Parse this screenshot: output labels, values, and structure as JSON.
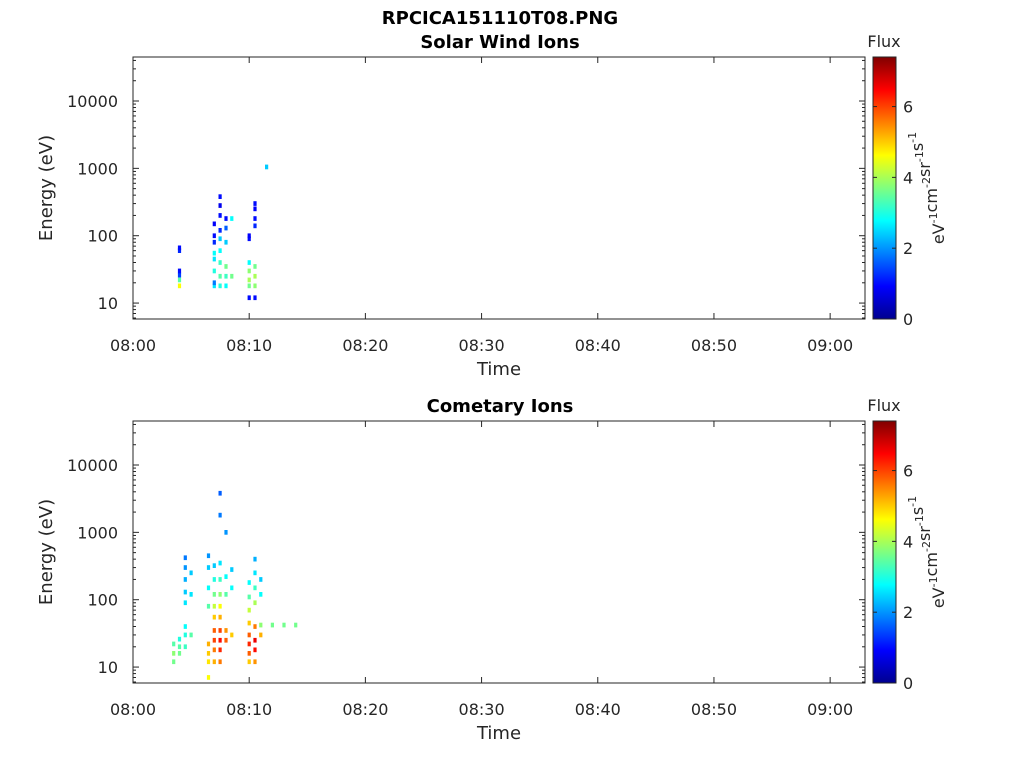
{
  "figure": {
    "filename": "RPCICA151110T08.PNG",
    "colormap": "jet"
  },
  "chart_data": [
    {
      "type": "heatmap",
      "title": "Solar Wind Ions",
      "xlabel": "Time",
      "ylabel": "Energy (eV)",
      "xlim": [
        "08:00",
        "09:03"
      ],
      "ylim": [
        5.8,
        45000
      ],
      "yscale": "log",
      "xticks": [
        "08:00",
        "08:10",
        "08:20",
        "08:30",
        "08:40",
        "08:50",
        "09:00"
      ],
      "yticks": [
        "10",
        "100",
        "1000",
        "10000"
      ],
      "colorbar": {
        "label_top": "Flux",
        "unit_parts": [
          [
            "eV",
            "-1"
          ],
          [
            "cm",
            "-2"
          ],
          [
            "sr",
            "-1"
          ],
          [
            "s",
            "-1"
          ]
        ],
        "range": [
          0,
          7.4
        ],
        "ticks": [
          "0",
          "2",
          "4",
          "6"
        ]
      },
      "cells": [
        [
          "08:04",
          18,
          4.6
        ],
        [
          "08:04",
          22,
          3.4
        ],
        [
          "08:04",
          26,
          1.4
        ],
        [
          "08:04",
          30,
          1.0
        ],
        [
          "08:04",
          60,
          1.2
        ],
        [
          "08:04",
          66,
          1.0
        ],
        [
          "08:07",
          18,
          2.6
        ],
        [
          "08:07",
          20,
          1.8
        ],
        [
          "08:07",
          30,
          3.0
        ],
        [
          "08:07",
          45,
          2.6
        ],
        [
          "08:07",
          55,
          2.8
        ],
        [
          "08:07",
          80,
          1.2
        ],
        [
          "08:07",
          100,
          1.0
        ],
        [
          "08:07",
          150,
          0.9
        ],
        [
          "08:07.5",
          18,
          3.0
        ],
        [
          "08:07.5",
          25,
          3.4
        ],
        [
          "08:07.5",
          40,
          3.2
        ],
        [
          "08:07.5",
          60,
          2.8
        ],
        [
          "08:07.5",
          90,
          2.4
        ],
        [
          "08:07.5",
          120,
          1.2
        ],
        [
          "08:07.5",
          200,
          1.0
        ],
        [
          "08:07.5",
          280,
          0.8
        ],
        [
          "08:07.5",
          380,
          1.0
        ],
        [
          "08:08",
          18,
          2.8
        ],
        [
          "08:08",
          25,
          3.2
        ],
        [
          "08:08",
          35,
          3.6
        ],
        [
          "08:08",
          80,
          2.4
        ],
        [
          "08:08",
          130,
          1.6
        ],
        [
          "08:08",
          180,
          1.0
        ],
        [
          "08:08.5",
          25,
          3.6
        ],
        [
          "08:08.5",
          180,
          2.8
        ],
        [
          "08:10",
          12,
          1.0
        ],
        [
          "08:10",
          18,
          3.6
        ],
        [
          "08:10",
          22,
          4.0
        ],
        [
          "08:10",
          30,
          3.8
        ],
        [
          "08:10",
          40,
          2.8
        ],
        [
          "08:10",
          90,
          1.0
        ],
        [
          "08:10",
          100,
          0.9
        ],
        [
          "08:10.5",
          12,
          1.0
        ],
        [
          "08:10.5",
          18,
          3.8
        ],
        [
          "08:10.5",
          25,
          4.0
        ],
        [
          "08:10.5",
          35,
          3.6
        ],
        [
          "08:10.5",
          140,
          1.2
        ],
        [
          "08:10.5",
          180,
          1.0
        ],
        [
          "08:10.5",
          250,
          0.9
        ],
        [
          "08:10.5",
          300,
          1.0
        ],
        [
          "08:11.5",
          1050,
          2.4
        ]
      ]
    },
    {
      "type": "heatmap",
      "title": "Cometary Ions",
      "xlabel": "Time",
      "ylabel": "Energy (eV)",
      "xlim": [
        "08:00",
        "09:03"
      ],
      "ylim": [
        5.8,
        45000
      ],
      "yscale": "log",
      "xticks": [
        "08:00",
        "08:10",
        "08:20",
        "08:30",
        "08:40",
        "08:50",
        "09:00"
      ],
      "yticks": [
        "10",
        "100",
        "1000",
        "10000"
      ],
      "colorbar": {
        "label_top": "Flux",
        "unit_parts": [
          [
            "eV",
            "-1"
          ],
          [
            "cm",
            "-2"
          ],
          [
            "sr",
            "-1"
          ],
          [
            "s",
            "-1"
          ]
        ],
        "range": [
          0,
          7.4
        ],
        "ticks": [
          "0",
          "2",
          "4",
          "6"
        ]
      },
      "cells": [
        [
          "08:03.5",
          12,
          3.6
        ],
        [
          "08:03.5",
          16,
          3.8
        ],
        [
          "08:03.5",
          22,
          3.4
        ],
        [
          "08:04",
          16,
          3.6
        ],
        [
          "08:04",
          20,
          3.4
        ],
        [
          "08:04",
          26,
          3.0
        ],
        [
          "08:04.5",
          20,
          3.2
        ],
        [
          "08:04.5",
          30,
          3.0
        ],
        [
          "08:04.5",
          40,
          2.8
        ],
        [
          "08:04.5",
          90,
          2.6
        ],
        [
          "08:04.5",
          130,
          2.4
        ],
        [
          "08:04.5",
          200,
          2.2
        ],
        [
          "08:04.5",
          300,
          2.0
        ],
        [
          "08:04.5",
          420,
          1.8
        ],
        [
          "08:05",
          30,
          3.4
        ],
        [
          "08:05",
          120,
          2.6
        ],
        [
          "08:05",
          250,
          2.4
        ],
        [
          "08:06.5",
          7,
          4.6
        ],
        [
          "08:06.5",
          12,
          4.8
        ],
        [
          "08:06.5",
          16,
          5.0
        ],
        [
          "08:06.5",
          22,
          5.2
        ],
        [
          "08:06.5",
          80,
          3.4
        ],
        [
          "08:06.5",
          150,
          2.8
        ],
        [
          "08:06.5",
          300,
          2.4
        ],
        [
          "08:06.5",
          450,
          2.0
        ],
        [
          "08:07",
          12,
          5.2
        ],
        [
          "08:07",
          18,
          5.6
        ],
        [
          "08:07",
          25,
          6.0
        ],
        [
          "08:07",
          35,
          5.8
        ],
        [
          "08:07",
          55,
          5.0
        ],
        [
          "08:07",
          80,
          4.2
        ],
        [
          "08:07",
          120,
          3.6
        ],
        [
          "08:07",
          200,
          3.0
        ],
        [
          "08:07",
          320,
          2.4
        ],
        [
          "08:07.5",
          12,
          5.6
        ],
        [
          "08:07.5",
          18,
          6.2
        ],
        [
          "08:07.5",
          25,
          6.4
        ],
        [
          "08:07.5",
          35,
          6.0
        ],
        [
          "08:07.5",
          55,
          5.2
        ],
        [
          "08:07.5",
          80,
          4.6
        ],
        [
          "08:07.5",
          120,
          3.8
        ],
        [
          "08:07.5",
          200,
          3.2
        ],
        [
          "08:07.5",
          350,
          2.6
        ],
        [
          "08:07.5",
          1800,
          1.8
        ],
        [
          "08:07.5",
          3800,
          1.6
        ],
        [
          "08:08",
          25,
          5.8
        ],
        [
          "08:08",
          35,
          5.4
        ],
        [
          "08:08",
          120,
          3.4
        ],
        [
          "08:08",
          220,
          2.8
        ],
        [
          "08:08",
          1000,
          2.0
        ],
        [
          "08:08.5",
          30,
          5.0
        ],
        [
          "08:08.5",
          150,
          2.8
        ],
        [
          "08:08.5",
          280,
          2.4
        ],
        [
          "08:10",
          12,
          5.0
        ],
        [
          "08:10",
          16,
          5.8
        ],
        [
          "08:10",
          22,
          6.2
        ],
        [
          "08:10",
          30,
          5.8
        ],
        [
          "08:10",
          45,
          5.0
        ],
        [
          "08:10",
          70,
          4.2
        ],
        [
          "08:10",
          110,
          3.4
        ],
        [
          "08:10",
          180,
          2.8
        ],
        [
          "08:10.5",
          12,
          5.4
        ],
        [
          "08:10.5",
          18,
          6.4
        ],
        [
          "08:10.5",
          25,
          6.6
        ],
        [
          "08:10.5",
          40,
          5.6
        ],
        [
          "08:10.5",
          90,
          4.0
        ],
        [
          "08:10.5",
          150,
          3.2
        ],
        [
          "08:10.5",
          250,
          2.6
        ],
        [
          "08:10.5",
          400,
          2.2
        ],
        [
          "08:11",
          30,
          5.2
        ],
        [
          "08:11",
          42,
          3.8
        ],
        [
          "08:11",
          120,
          2.8
        ],
        [
          "08:11",
          200,
          2.4
        ],
        [
          "08:12",
          42,
          3.6
        ],
        [
          "08:13",
          42,
          3.6
        ],
        [
          "08:14",
          42,
          3.6
        ]
      ]
    }
  ]
}
